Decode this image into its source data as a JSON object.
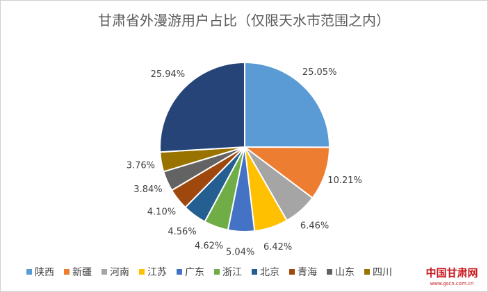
{
  "chart_data": {
    "type": "pie",
    "title": "甘肃省外漫游用户占比（仅限天水市范围之内）",
    "categories": [
      "陕西",
      "新疆",
      "河南",
      "江苏",
      "广东",
      "浙江",
      "北京",
      "青海",
      "山东",
      "四川",
      null
    ],
    "values": [
      25.05,
      10.21,
      6.46,
      6.42,
      5.04,
      4.62,
      4.56,
      4.1,
      3.84,
      3.76,
      25.94
    ],
    "value_labels": [
      "25.05%",
      "10.21%",
      "6.46%",
      "6.42%",
      "5.04%",
      "4.62%",
      "4.56%",
      "4.10%",
      "3.84%",
      "3.76%",
      "25.94%"
    ],
    "colors": [
      "#5b9bd5",
      "#ed7d31",
      "#a5a5a5",
      "#ffc000",
      "#4472c4",
      "#70ad47",
      "#255e91",
      "#9e480e",
      "#636363",
      "#997300",
      "#264478"
    ],
    "legend": "bottom",
    "watermark": "中国甘肃网",
    "watermark_url": "www.gscn.com.cn"
  }
}
